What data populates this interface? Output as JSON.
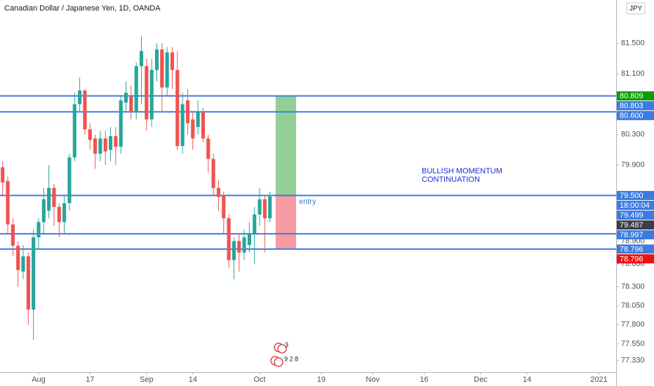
{
  "chart_data": {
    "type": "candlestick",
    "title": "Canadian Dollar / Japanese Yen, 1D, OANDA",
    "currency": "JPY",
    "annotation": [
      "BULLISH MOMENTUM",
      "CONTINUATION"
    ],
    "annotation_color": "#1c2bd6",
    "up_color": "#26a69a",
    "down_color": "#ef5350",
    "line_color": "#3c7be0",
    "x": [
      0,
      1,
      2,
      3,
      4,
      5,
      6,
      7,
      8,
      9,
      10,
      11,
      12,
      13,
      14,
      15,
      16,
      17,
      18,
      19,
      20,
      21,
      22,
      23,
      24,
      25,
      26,
      27,
      28,
      29,
      30,
      31,
      32,
      33,
      34,
      35,
      36,
      37,
      38,
      39,
      40,
      41,
      42,
      43,
      44,
      45,
      46,
      47,
      48,
      49,
      50,
      51,
      52
    ],
    "series": [
      {
        "open": [
          79.87,
          79.69,
          79.12,
          78.84,
          78.5,
          78.7,
          78.0,
          78.95,
          79.15,
          79.3,
          79.6,
          79.35,
          79.15,
          79.4,
          80.0,
          80.7,
          80.88,
          80.37,
          80.25,
          80.05,
          80.25,
          80.1,
          80.28,
          80.14,
          80.72,
          80.8,
          80.6,
          81.2,
          81.2,
          80.5,
          81.15,
          81.42,
          80.92,
          81.38,
          81.15,
          80.15,
          80.75,
          80.5,
          80.4,
          80.6,
          80.25,
          79.98,
          79.6,
          79.5,
          79.2,
          78.65,
          78.9,
          78.75,
          78.85,
          79.0,
          79.25,
          79.45,
          79.2
        ],
        "high": [
          79.95,
          79.75,
          79.2,
          78.9,
          78.85,
          78.75,
          79.05,
          79.2,
          79.6,
          79.9,
          79.65,
          79.4,
          79.5,
          80.05,
          80.85,
          81.05,
          80.9,
          80.45,
          80.3,
          80.35,
          80.35,
          80.4,
          80.4,
          80.8,
          81.0,
          80.95,
          81.25,
          81.6,
          81.3,
          81.3,
          81.5,
          81.5,
          81.45,
          81.45,
          81.4,
          80.85,
          80.9,
          80.6,
          80.75,
          80.65,
          80.3,
          80.05,
          79.7,
          79.55,
          79.25,
          78.95,
          79.0,
          79.05,
          79.15,
          79.35,
          79.6,
          79.5,
          79.55
        ],
        "low": [
          79.5,
          79.0,
          78.7,
          78.3,
          78.4,
          77.8,
          77.6,
          78.8,
          79.0,
          79.2,
          79.1,
          78.95,
          79.0,
          79.3,
          79.95,
          80.6,
          80.3,
          80.1,
          79.85,
          79.95,
          79.9,
          79.95,
          79.9,
          80.05,
          80.6,
          80.5,
          80.5,
          80.7,
          80.35,
          80.4,
          81.0,
          80.6,
          80.8,
          80.9,
          80.1,
          80.05,
          80.3,
          80.1,
          80.3,
          80.2,
          79.8,
          79.5,
          79.3,
          79.0,
          78.55,
          78.4,
          78.5,
          78.65,
          78.75,
          78.6,
          79.1,
          78.75,
          79.15
        ],
        "close": [
          79.67,
          79.12,
          78.84,
          78.52,
          78.7,
          78.0,
          78.95,
          79.15,
          79.45,
          79.6,
          79.35,
          79.15,
          79.4,
          80.0,
          80.7,
          80.88,
          80.37,
          80.23,
          80.05,
          80.25,
          80.08,
          80.28,
          80.14,
          80.75,
          80.85,
          80.6,
          81.2,
          81.4,
          80.5,
          81.15,
          81.42,
          80.92,
          81.38,
          81.15,
          80.15,
          80.7,
          80.45,
          80.25,
          80.6,
          80.25,
          79.98,
          79.6,
          79.48,
          79.2,
          78.65,
          78.9,
          78.75,
          78.95,
          79.0,
          79.25,
          79.45,
          79.2,
          79.487
        ]
      }
    ],
    "xlim": [
      -0.507,
      119.34
    ],
    "xticks": [
      {
        "value": 7,
        "label": "Aug"
      },
      {
        "value": 17,
        "label": "17"
      },
      {
        "value": 28,
        "label": "Sep"
      },
      {
        "value": 37,
        "label": "14"
      },
      {
        "value": 50,
        "label": "Oct"
      },
      {
        "value": 62,
        "label": "19"
      },
      {
        "value": 72,
        "label": "Nov"
      },
      {
        "value": 82,
        "label": "16"
      },
      {
        "value": 93,
        "label": "Dec"
      },
      {
        "value": 102,
        "label": "14"
      },
      {
        "value": 116,
        "label": "2021"
      }
    ],
    "ylim": [
      77.18,
      82.07
    ],
    "yticks": [
      {
        "value": 81.5,
        "label": "81.500"
      },
      {
        "value": 81.1,
        "label": "81.100"
      },
      {
        "value": 80.3,
        "label": "80.300"
      },
      {
        "value": 79.9,
        "label": "79.900"
      },
      {
        "value": 78.9,
        "label": "78.900"
      },
      {
        "value": 78.6,
        "label": "78.600"
      },
      {
        "value": 78.3,
        "label": "78.300"
      },
      {
        "value": 78.05,
        "label": "78.050"
      },
      {
        "value": 77.8,
        "label": "77.800"
      },
      {
        "value": 77.55,
        "label": "77.550"
      },
      {
        "value": 77.33,
        "label": "77.330"
      }
    ],
    "hlines": [
      80.809,
      80.6,
      79.5,
      78.997,
      78.796
    ],
    "position": {
      "start": 53.1,
      "end": 57.1,
      "target": 80.809,
      "entry": 79.5,
      "stop": 78.796,
      "label": "entry"
    },
    "price_labels": [
      {
        "value": 80.809,
        "label": "80.809",
        "color": "#089e08"
      },
      {
        "value": 80.803,
        "label": "80.803",
        "color": "#3c7be0"
      },
      {
        "value": 80.6,
        "label": "80.600",
        "color": "#3c7be0"
      },
      {
        "value": 79.5,
        "label": "79.500",
        "color": "#3c7be0"
      },
      {
        "value": 79.499,
        "label": "79.499",
        "color": "#3c7be0"
      },
      {
        "value": 79.487,
        "label": "79.487",
        "color": "#3a3e4a"
      },
      {
        "value": 78.997,
        "label": "78.997",
        "color": "#3c7be0"
      },
      {
        "value": 78.796,
        "label": "78.796",
        "color": "#3c7be0"
      },
      {
        "value": 78.796,
        "label": "78.796",
        "color": "#f01010"
      }
    ],
    "countdown": "18:00:04",
    "events": [
      "3",
      "9 2 8"
    ]
  }
}
